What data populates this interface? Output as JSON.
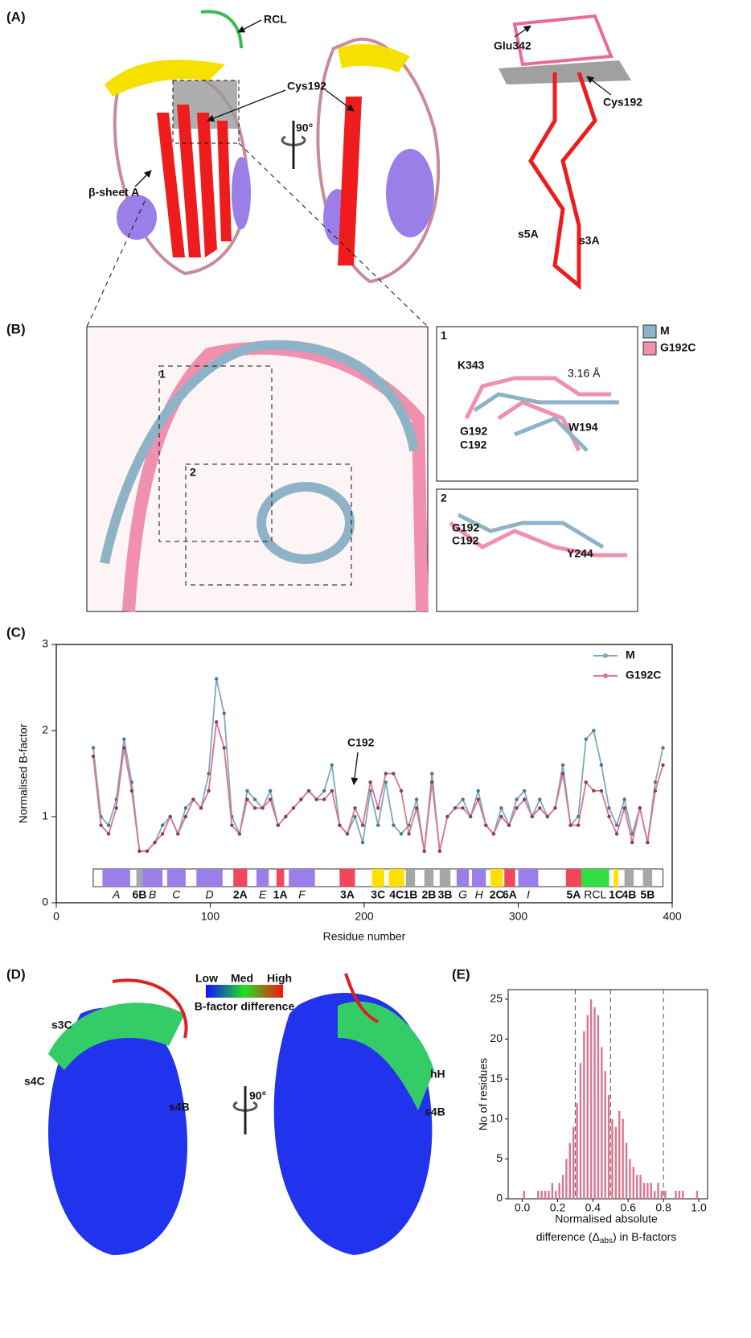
{
  "panels": {
    "a": {
      "label": "(A)",
      "rcl": "RCL",
      "cys192": "Cys192",
      "beta_sheet": "β-sheet A",
      "rotation": "90°",
      "glu342": "Glu342",
      "cys192_right": "Cys192",
      "s5a": "s5A",
      "s3a": "s3A"
    },
    "b": {
      "label": "(B)",
      "box1": "1",
      "box2": "2",
      "inset1": {
        "label": "1",
        "k343": "K343",
        "distance": "3.16 Å",
        "w194": "W194",
        "g192": "G192",
        "c192": "C192"
      },
      "inset2": {
        "label": "2",
        "g192": "G192",
        "c192": "C192",
        "y244": "Y244"
      },
      "legend": [
        {
          "name": "M",
          "color": "#8fb3c6"
        },
        {
          "name": "G192C",
          "color": "#f08fae"
        }
      ]
    },
    "c": {
      "label": "(C)"
    },
    "d": {
      "label": "(D)",
      "low": "Low",
      "med": "Med",
      "high": "High",
      "colorbar_title": "B-factor difference",
      "s3c": "s3C",
      "s4c": "s4C",
      "s4b": "s4B",
      "hh": "hH",
      "s4b_right": "s4B",
      "rotation": "90°"
    },
    "e": {
      "label": "(E)"
    }
  },
  "chart_data": [
    {
      "type": "line",
      "xlabel": "Residue number",
      "ylabel": "Normalised B-factor",
      "annotation": "C192",
      "x": [
        24,
        29,
        34,
        39,
        44,
        49,
        54,
        59,
        64,
        69,
        74,
        79,
        84,
        89,
        94,
        99,
        104,
        109,
        114,
        119,
        124,
        129,
        134,
        139,
        144,
        149,
        154,
        159,
        164,
        169,
        174,
        179,
        184,
        189,
        194,
        199,
        204,
        209,
        214,
        219,
        224,
        229,
        234,
        239,
        244,
        249,
        254,
        259,
        264,
        269,
        274,
        279,
        284,
        289,
        294,
        299,
        304,
        309,
        314,
        319,
        324,
        329,
        334,
        339,
        344,
        349,
        354,
        359,
        364,
        369,
        374,
        379,
        384,
        389,
        394
      ],
      "series": [
        {
          "name": "M",
          "color": "#7fa8bf",
          "values": [
            1.8,
            1.0,
            0.9,
            1.2,
            1.9,
            1.4,
            0.6,
            0.6,
            0.7,
            0.9,
            1.0,
            0.8,
            1.1,
            1.2,
            1.1,
            1.5,
            2.6,
            2.2,
            1.0,
            0.8,
            1.3,
            1.2,
            1.1,
            1.3,
            0.9,
            1.0,
            1.1,
            1.2,
            1.3,
            1.2,
            1.3,
            1.6,
            0.9,
            0.8,
            1.0,
            0.7,
            1.3,
            0.9,
            1.4,
            0.9,
            0.8,
            0.9,
            1.2,
            0.6,
            1.5,
            0.6,
            1.0,
            1.1,
            1.2,
            1.0,
            1.3,
            0.9,
            0.8,
            1.1,
            0.9,
            1.2,
            1.3,
            1.0,
            1.2,
            1.0,
            1.1,
            1.6,
            0.9,
            1.0,
            1.9,
            2.0,
            1.6,
            1.1,
            0.9,
            1.2,
            0.8,
            1.1,
            0.7,
            1.4,
            1.8
          ]
        },
        {
          "name": "G192C",
          "color": "#d9768f",
          "values": [
            1.7,
            0.9,
            0.8,
            1.1,
            1.8,
            1.3,
            0.6,
            0.6,
            0.7,
            0.8,
            1.0,
            0.8,
            1.0,
            1.2,
            1.1,
            1.3,
            2.1,
            1.8,
            0.9,
            0.8,
            1.2,
            1.1,
            1.1,
            1.2,
            0.9,
            1.0,
            1.1,
            1.2,
            1.3,
            1.2,
            1.2,
            1.3,
            0.9,
            0.8,
            1.1,
            0.9,
            1.4,
            1.1,
            1.5,
            1.5,
            1.3,
            0.8,
            1.1,
            0.6,
            1.4,
            0.6,
            1.0,
            1.1,
            1.1,
            1.0,
            1.2,
            0.9,
            0.8,
            1.0,
            0.9,
            1.1,
            1.2,
            1.0,
            1.1,
            1.0,
            1.1,
            1.5,
            0.9,
            0.9,
            1.4,
            1.3,
            1.3,
            1.0,
            0.8,
            1.1,
            0.7,
            1.1,
            0.7,
            1.3,
            1.6
          ]
        }
      ],
      "xlim": [
        0,
        400
      ],
      "ylim": [
        0,
        3
      ],
      "xticks": [
        0,
        100,
        200,
        300,
        400
      ],
      "yticks": [
        0,
        1,
        2,
        3
      ],
      "legend": "upper right",
      "ss_elements": [
        {
          "label": "A",
          "start": 30,
          "end": 48,
          "color": "#9b7fe8"
        },
        {
          "label": "6B",
          "start": 52,
          "end": 56,
          "color": "#a6a6a6"
        },
        {
          "label": "B",
          "start": 56,
          "end": 69,
          "color": "#9b7fe8"
        },
        {
          "label": "C",
          "start": 72,
          "end": 84,
          "color": "#9b7fe8"
        },
        {
          "label": "D",
          "start": 91,
          "end": 108,
          "color": "#9b7fe8"
        },
        {
          "label": "2A",
          "start": 115,
          "end": 124,
          "color": "#f0475a"
        },
        {
          "label": "E",
          "start": 130,
          "end": 138,
          "color": "#9b7fe8"
        },
        {
          "label": "1A",
          "start": 143,
          "end": 148,
          "color": "#f0475a"
        },
        {
          "label": "F",
          "start": 151,
          "end": 168,
          "color": "#9b7fe8"
        },
        {
          "label": "3A",
          "start": 184,
          "end": 194,
          "color": "#f0475a"
        },
        {
          "label": "3C",
          "start": 205,
          "end": 213,
          "color": "#ffe000"
        },
        {
          "label": "4C",
          "start": 216,
          "end": 226,
          "color": "#ffe000"
        },
        {
          "label": "1B",
          "start": 227,
          "end": 233,
          "color": "#a6a6a6"
        },
        {
          "label": "2B",
          "start": 239,
          "end": 245,
          "color": "#a6a6a6"
        },
        {
          "label": "3B",
          "start": 249,
          "end": 256,
          "color": "#a6a6a6"
        },
        {
          "label": "G",
          "start": 260,
          "end": 268,
          "color": "#9b7fe8"
        },
        {
          "label": "H",
          "start": 270,
          "end": 279,
          "color": "#9b7fe8"
        },
        {
          "label": "2C",
          "start": 282,
          "end": 290,
          "color": "#ffe000"
        },
        {
          "label": "6A",
          "start": 291,
          "end": 298,
          "color": "#f0475a"
        },
        {
          "label": "I",
          "start": 300,
          "end": 313,
          "color": "#9b7fe8"
        },
        {
          "label": "5A",
          "start": 331,
          "end": 341,
          "color": "#f0475a"
        },
        {
          "label": "RCL",
          "start": 341,
          "end": 359,
          "color": "#33dd44"
        },
        {
          "label": "1C",
          "start": 362,
          "end": 365,
          "color": "#ffe000"
        },
        {
          "label": "4B",
          "start": 369,
          "end": 375,
          "color": "#a6a6a6"
        },
        {
          "label": "5B",
          "start": 381,
          "end": 387,
          "color": "#a6a6a6"
        }
      ],
      "ss_range": [
        24,
        394
      ]
    },
    {
      "type": "histogram",
      "xlabel": {
        "line1": "Normalised absolute",
        "pre": "difference (Δ",
        "sub": "abs",
        "post": ") in B-factors"
      },
      "ylabel": "No of residues",
      "color": "#d9768f",
      "bins": [
        0,
        0.02,
        0.04,
        0.06,
        0.08,
        0.1,
        0.12,
        0.14,
        0.16,
        0.18,
        0.2,
        0.22,
        0.24,
        0.26,
        0.28,
        0.3,
        0.32,
        0.34,
        0.36,
        0.38,
        0.4,
        0.42,
        0.44,
        0.46,
        0.48,
        0.5,
        0.52,
        0.54,
        0.56,
        0.58,
        0.6,
        0.62,
        0.64,
        0.66,
        0.68,
        0.7,
        0.72,
        0.74,
        0.76,
        0.78,
        0.8,
        0.82,
        0.84,
        0.86,
        0.88,
        0.9,
        0.92,
        0.94,
        0.96,
        0.98,
        1
      ],
      "counts": [
        1,
        0,
        0,
        0,
        1,
        1,
        1,
        1,
        2,
        1,
        2,
        3,
        5,
        7,
        9,
        12,
        17,
        21,
        23,
        25,
        24,
        23,
        19,
        16,
        13,
        10,
        9,
        11,
        10,
        7,
        5,
        4,
        3,
        3,
        2,
        2,
        2,
        1,
        2,
        1,
        1,
        0,
        0,
        1,
        1,
        1,
        0,
        0,
        0,
        1
      ],
      "vlines": [
        0.3,
        0.5,
        0.8
      ],
      "xlim": [
        -0.08,
        1.05
      ],
      "ylim": [
        0,
        26.2
      ],
      "xticks": [
        {
          "value": 0,
          "label": "0.0"
        },
        {
          "value": 0.2,
          "label": "0.2"
        },
        {
          "value": 0.4,
          "label": "0.4"
        },
        {
          "value": 0.6,
          "label": "0.6"
        },
        {
          "value": 0.8,
          "label": "0.8"
        },
        {
          "value": 1,
          "label": "1.0"
        }
      ],
      "yticks": [
        0,
        5,
        10,
        15,
        20,
        25
      ]
    }
  ]
}
